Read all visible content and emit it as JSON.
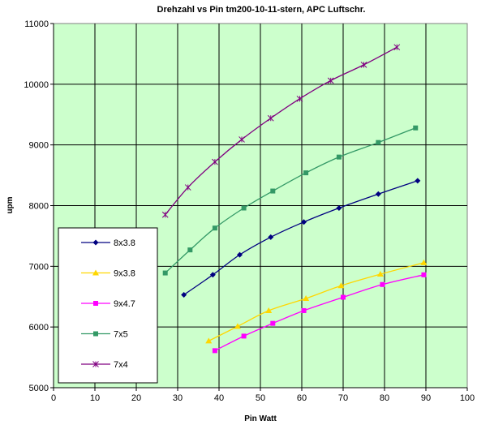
{
  "chart_data": {
    "type": "line",
    "title": "Drehzahl vs Pin tm200-10-11-stern, APC Luftschr.",
    "xlabel": "Pin Watt",
    "ylabel": "upm",
    "xlim": [
      0,
      100
    ],
    "ylim": [
      5000,
      11000
    ],
    "xticks": [
      0,
      10,
      20,
      30,
      40,
      50,
      60,
      70,
      80,
      90,
      100
    ],
    "yticks": [
      5000,
      6000,
      7000,
      8000,
      9000,
      10000,
      11000
    ],
    "grid": true,
    "legend_position": "bottom-left",
    "plot_background": "#ccffcc",
    "series": [
      {
        "name": "8x3.8",
        "color": "#000080",
        "marker": "diamond",
        "x": [
          31.5,
          38.5,
          45,
          52.5,
          60.5,
          69,
          78.5,
          88
        ],
        "y": [
          6530,
          6860,
          7190,
          7480,
          7730,
          7960,
          8190,
          8410
        ]
      },
      {
        "name": "9x3.8",
        "color": "#ffd700",
        "marker": "triangle",
        "x": [
          37.5,
          44.5,
          52,
          61,
          69.5,
          79,
          89.5
        ],
        "y": [
          5770,
          6010,
          6270,
          6470,
          6680,
          6870,
          7060
        ]
      },
      {
        "name": "9x4.7",
        "color": "#ff00ff",
        "marker": "square",
        "x": [
          39,
          46,
          53,
          60.5,
          70,
          79.5,
          89.5
        ],
        "y": [
          5610,
          5850,
          6060,
          6270,
          6490,
          6700,
          6860
        ]
      },
      {
        "name": "7x5",
        "color": "#339966",
        "marker": "square",
        "x": [
          27,
          33,
          39,
          46,
          53,
          61,
          69,
          78.5,
          87.5
        ],
        "y": [
          6890,
          7270,
          7630,
          7960,
          8240,
          8540,
          8800,
          9040,
          9280
        ]
      },
      {
        "name": "7x4",
        "color": "#800080",
        "marker": "star",
        "x": [
          27,
          32.5,
          39,
          45.5,
          52.5,
          59.5,
          67,
          75,
          83
        ],
        "y": [
          7850,
          8300,
          8720,
          9090,
          9440,
          9760,
          10060,
          10320,
          10610
        ]
      }
    ]
  }
}
